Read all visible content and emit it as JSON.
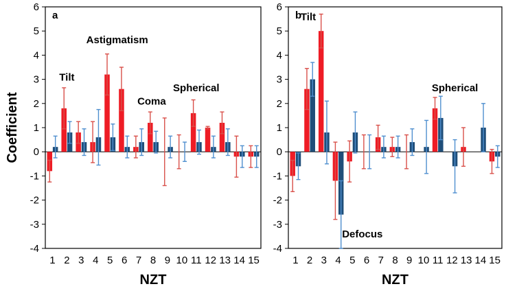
{
  "chart_data": {
    "type": "bar",
    "ylabel": "Coefficient",
    "series_colors": {
      "red": "#ee1c25",
      "blue": "#1f4e79",
      "red_err": "#d9504a",
      "blue_err": "#4f8fcf"
    },
    "panels": [
      {
        "id": "a",
        "xlabel": "NZT",
        "ylim": [
          -4,
          6
        ],
        "yticks": [
          6,
          5,
          4,
          3,
          2,
          1,
          0,
          -1,
          -2,
          -3,
          -4
        ],
        "categories": [
          "1",
          "2",
          "3",
          "4",
          "5",
          "6",
          "7",
          "8",
          "9",
          "10",
          "11",
          "12",
          "13",
          "14",
          "15"
        ],
        "series": [
          {
            "name": "red",
            "values": [
              -0.8,
              1.8,
              0.8,
              0.4,
              3.2,
              2.6,
              0.2,
              1.2,
              0.0,
              0.0,
              1.6,
              1.0,
              1.2,
              -0.2,
              -0.2
            ],
            "err": [
              0.45,
              0.85,
              0.45,
              0.85,
              0.85,
              0.9,
              0.45,
              0.45,
              1.4,
              0.7,
              0.55,
              0.05,
              0.45,
              0.85,
              0.45
            ]
          },
          {
            "name": "blue",
            "values": [
              0.2,
              0.8,
              0.4,
              0.6,
              0.6,
              0.2,
              0.4,
              0.4,
              0.2,
              0.0,
              0.4,
              0.2,
              0.4,
              -0.2,
              -0.2
            ],
            "err": [
              0.45,
              0.45,
              0.55,
              1.15,
              0.55,
              0.45,
              0.55,
              0.45,
              0.45,
              0.4,
              0.5,
              0.45,
              0.55,
              0.45,
              0.45
            ]
          }
        ],
        "annotations": [
          {
            "text": "Tilt",
            "at": [
              2,
              2.95
            ]
          },
          {
            "text": "Astigmatism",
            "at": [
              5.5,
              4.5
            ]
          },
          {
            "text": "Coma",
            "at": [
              7.9,
              1.95
            ]
          },
          {
            "text": "Spherical",
            "at": [
              11,
              2.5
            ]
          }
        ]
      },
      {
        "id": "b",
        "xlabel": "NZT",
        "ylim": [
          -4,
          6
        ],
        "yticks": [
          6,
          5,
          4,
          3,
          2,
          1,
          0,
          -1,
          -2,
          -3,
          -4
        ],
        "categories": [
          "1",
          "2",
          "3",
          "4",
          "5",
          "6",
          "7",
          "8",
          "9",
          "10",
          "11",
          "12",
          "13",
          "14",
          "15"
        ],
        "series": [
          {
            "name": "red",
            "values": [
              -1.0,
              2.6,
              5.0,
              -1.2,
              -0.4,
              0.0,
              0.6,
              0.2,
              0.0,
              0.0,
              1.8,
              0.0,
              0.2,
              0.0,
              -0.4
            ],
            "err": [
              0.65,
              0.85,
              0.7,
              1.6,
              0.85,
              0.7,
              0.5,
              0.4,
              0.7,
              0.0,
              0.45,
              0.0,
              0.8,
              0.0,
              0.5
            ]
          },
          {
            "name": "blue",
            "values": [
              -0.6,
              3.0,
              0.8,
              -2.6,
              0.8,
              0.0,
              0.2,
              0.2,
              0.4,
              0.2,
              1.4,
              -0.6,
              0.0,
              1.0,
              -0.2
            ],
            "err": [
              0.55,
              0.7,
              1.3,
              1.4,
              0.85,
              0.7,
              0.45,
              0.45,
              0.55,
              1.1,
              0.9,
              1.1,
              0.0,
              1.0,
              0.45
            ]
          }
        ],
        "annotations": [
          {
            "text": "Tilt",
            "at": [
              1.9,
              5.45
            ]
          },
          {
            "text": "Spherical",
            "at": [
              12.2,
              2.5
            ]
          },
          {
            "text": "Defocus",
            "at": [
              5.7,
              -3.55
            ]
          }
        ]
      }
    ]
  }
}
